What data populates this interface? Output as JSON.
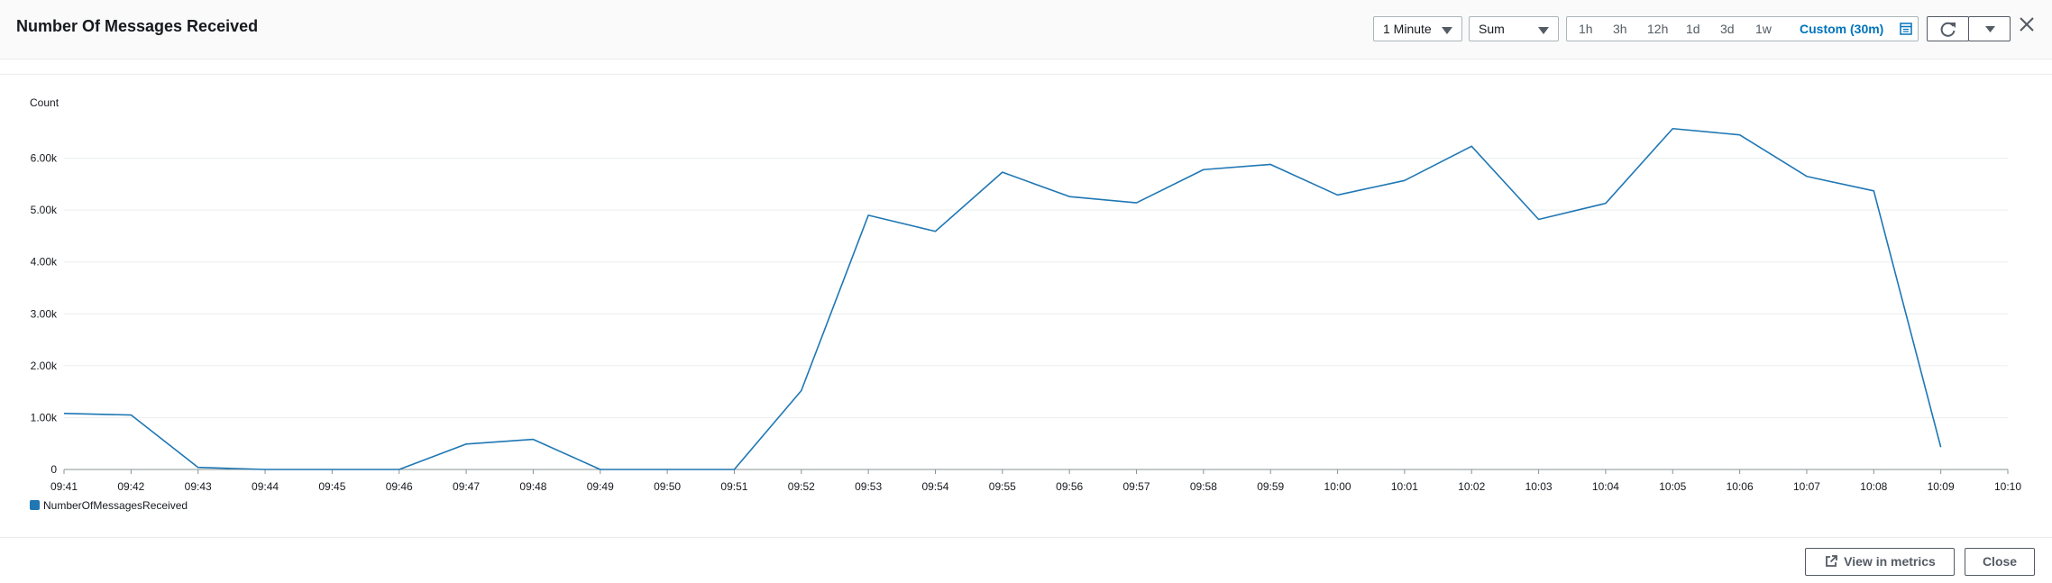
{
  "header": {
    "title": "Number Of Messages Received",
    "period_select": "1 Minute",
    "stat_select": "Sum",
    "ranges": [
      "1h",
      "3h",
      "12h",
      "1d",
      "3d",
      "1w"
    ],
    "custom_range": "Custom (30m)"
  },
  "footer": {
    "view_in_metrics": "View in metrics",
    "close": "Close"
  },
  "colors": {
    "series": "#1f77b4",
    "accent": "#0073bb"
  },
  "chart_data": {
    "type": "line",
    "ylabel": "Count",
    "ylim": [
      0,
      7000
    ],
    "y_ticks": [
      0,
      1000,
      2000,
      3000,
      4000,
      5000,
      6000
    ],
    "y_tick_labels": [
      "0",
      "1.00k",
      "2.00k",
      "3.00k",
      "4.00k",
      "5.00k",
      "6.00k"
    ],
    "x_tick_labels": [
      "09:41",
      "09:42",
      "09:43",
      "09:44",
      "09:45",
      "09:46",
      "09:47",
      "09:48",
      "09:49",
      "09:50",
      "09:51",
      "09:52",
      "09:53",
      "09:54",
      "09:55",
      "09:56",
      "09:57",
      "09:58",
      "09:59",
      "10:00",
      "10:01",
      "10:02",
      "10:03",
      "10:04",
      "10:05",
      "10:06",
      "10:07",
      "10:08",
      "10:09",
      "10:10"
    ],
    "grid": true,
    "legend_position": "bottom-left",
    "series": [
      {
        "name": "NumberOfMessagesReceived",
        "x": [
          "09:41",
          "09:42",
          "09:43",
          "09:44",
          "09:45",
          "09:46",
          "09:47",
          "09:48",
          "09:49",
          "09:50",
          "09:51",
          "09:52",
          "09:53",
          "09:54",
          "09:55",
          "09:56",
          "09:57",
          "09:58",
          "09:59",
          "10:00",
          "10:01",
          "10:02",
          "10:03",
          "10:04",
          "10:05",
          "10:06",
          "10:07",
          "10:08",
          "10:09"
        ],
        "values": [
          1080,
          1050,
          40,
          0,
          0,
          0,
          490,
          580,
          0,
          0,
          0,
          1520,
          4900,
          4590,
          5730,
          5260,
          5140,
          5780,
          5880,
          5290,
          5570,
          6230,
          4820,
          5130,
          6570,
          6450,
          5650,
          5370,
          430
        ]
      }
    ]
  }
}
